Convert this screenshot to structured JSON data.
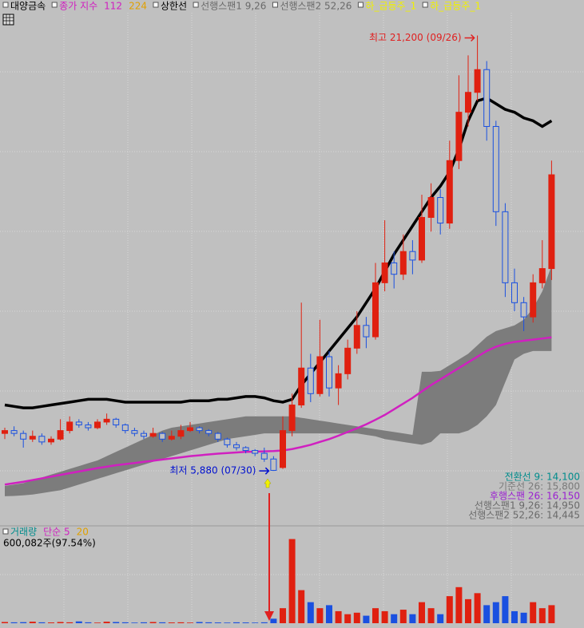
{
  "header": {
    "items": [
      {
        "text": "대양금속",
        "color": "#000000"
      },
      {
        "text": "종가 지수",
        "color": "#d020c0"
      },
      {
        "text": "112",
        "color": "#d020c0"
      },
      {
        "text": "224",
        "color": "#e0a000"
      },
      {
        "text": "상한선",
        "color": "#000000"
      },
      {
        "text": "선행스팬1 9,26",
        "color": "#6a6a6a"
      },
      {
        "text": "선행스팬2 52,26",
        "color": "#6a6a6a"
      },
      {
        "text": "하_급등주_1",
        "color": "#f0f000"
      },
      {
        "text": "하_급등주_1",
        "color": "#f0f000"
      }
    ]
  },
  "chart_data": {
    "type": "candlestick",
    "ylim": [
      4060,
      22000
    ],
    "up_color": "#e02010",
    "down_color": "#1a50e0",
    "open": [
      7200,
      7300,
      7200,
      7000,
      7100,
      6900,
      7000,
      7300,
      7600,
      7500,
      7400,
      7600,
      7700,
      7500,
      7300,
      7200,
      7100,
      7200,
      7000,
      7100,
      7300,
      7400,
      7300,
      7200,
      7000,
      6800,
      6700,
      6600,
      6500,
      6300,
      6000,
      7300,
      8200,
      9500,
      8600,
      9900,
      8800,
      9300,
      10200,
      11000,
      10600,
      12500,
      13200,
      12800,
      13600,
      13300,
      14800,
      15500,
      14600,
      16800,
      18500,
      19200,
      20000,
      18000,
      15000,
      12500,
      11800,
      11300,
      12500,
      13000
    ],
    "high": [
      7400,
      7450,
      7300,
      7300,
      7200,
      7100,
      7700,
      7800,
      7700,
      7600,
      7700,
      7900,
      7750,
      7550,
      7400,
      7300,
      7400,
      7250,
      7300,
      7500,
      7600,
      7450,
      7350,
      7250,
      7050,
      6900,
      6750,
      6650,
      6700,
      6400,
      7800,
      8600,
      11800,
      10000,
      11200,
      10100,
      9600,
      10500,
      11500,
      11300,
      13200,
      14700,
      13600,
      14200,
      14000,
      15600,
      16000,
      15800,
      17500,
      19800,
      20500,
      21200,
      20300,
      18200,
      15300,
      13000,
      12000,
      12800,
      14000,
      16800
    ],
    "low": [
      7000,
      7100,
      6700,
      6900,
      6800,
      6800,
      6950,
      7200,
      7400,
      7300,
      7350,
      7500,
      7400,
      7200,
      7100,
      7000,
      7050,
      6900,
      6950,
      7000,
      7250,
      7200,
      7100,
      6900,
      6700,
      6600,
      6500,
      6400,
      6200,
      5880,
      5950,
      7100,
      8100,
      8300,
      8500,
      8500,
      8200,
      9100,
      10000,
      10200,
      10500,
      12200,
      12300,
      12600,
      12800,
      13200,
      14300,
      14200,
      14400,
      16500,
      18000,
      18900,
      17500,
      14500,
      12000,
      11500,
      10800,
      11100,
      12300,
      12600
    ],
    "close": [
      7300,
      7200,
      7000,
      7100,
      6900,
      7000,
      7300,
      7600,
      7500,
      7400,
      7600,
      7700,
      7500,
      7300,
      7200,
      7100,
      7200,
      7000,
      7100,
      7300,
      7400,
      7300,
      7200,
      7000,
      6800,
      6700,
      6600,
      6500,
      6300,
      5900,
      7300,
      8200,
      9500,
      8600,
      9900,
      8800,
      9300,
      10200,
      11000,
      10600,
      12500,
      13200,
      12800,
      13600,
      13300,
      14800,
      15500,
      14600,
      16800,
      18500,
      19200,
      20000,
      18000,
      15000,
      12500,
      11800,
      11300,
      12500,
      13000,
      16300
    ],
    "upper_band": {
      "color": "#000000",
      "values": [
        8200,
        8150,
        8100,
        8100,
        8150,
        8200,
        8250,
        8300,
        8350,
        8400,
        8400,
        8400,
        8350,
        8300,
        8300,
        8300,
        8300,
        8300,
        8300,
        8300,
        8350,
        8350,
        8350,
        8400,
        8400,
        8450,
        8500,
        8500,
        8450,
        8350,
        8300,
        8400,
        8900,
        9300,
        9700,
        10100,
        10500,
        10900,
        11300,
        11800,
        12300,
        12900,
        13500,
        14000,
        14500,
        15000,
        15500,
        15900,
        16400,
        17200,
        18200,
        18900,
        19000,
        18800,
        18600,
        18500,
        18300,
        18200,
        18000,
        18200
      ]
    },
    "ma": {
      "color": "#d020c0",
      "values": [
        5400,
        5450,
        5500,
        5560,
        5620,
        5680,
        5740,
        5800,
        5860,
        5920,
        5980,
        6030,
        6080,
        6120,
        6160,
        6200,
        6240,
        6280,
        6320,
        6360,
        6400,
        6430,
        6460,
        6490,
        6510,
        6530,
        6550,
        6560,
        6570,
        6580,
        6600,
        6650,
        6720,
        6800,
        6900,
        7000,
        7120,
        7250,
        7380,
        7520,
        7680,
        7850,
        8050,
        8250,
        8450,
        8680,
        8900,
        9100,
        9300,
        9500,
        9700,
        9900,
        10100,
        10250,
        10350,
        10420,
        10460,
        10500,
        10540,
        10580
      ]
    },
    "cloud": {
      "color": "#7c7c7c",
      "span_a": [
        5350,
        5400,
        5450,
        5550,
        5650,
        5750,
        5850,
        5950,
        6050,
        6150,
        6250,
        6400,
        6550,
        6700,
        6850,
        7000,
        7150,
        7300,
        7400,
        7450,
        7500,
        7550,
        7600,
        7650,
        7700,
        7750,
        7800,
        7800,
        7800,
        7800,
        7800,
        7800,
        7750,
        7700,
        7650,
        7600,
        7550,
        7500,
        7450,
        7400,
        7350,
        7300,
        7250,
        7200,
        7150,
        9370,
        9370,
        9400,
        9600,
        9800,
        10000,
        10300,
        10600,
        10800,
        10900,
        11000,
        11200,
        11600,
        12200,
        13100
      ],
      "span_b": [
        4990,
        5000,
        5020,
        5050,
        5100,
        5150,
        5200,
        5300,
        5400,
        5500,
        5600,
        5700,
        5800,
        5900,
        6000,
        6100,
        6200,
        6300,
        6400,
        6500,
        6600,
        6700,
        6800,
        6900,
        7000,
        7050,
        7100,
        7150,
        7200,
        7200,
        7200,
        7200,
        7200,
        7200,
        7200,
        7200,
        7200,
        7200,
        7200,
        7150,
        7100,
        7000,
        6950,
        6900,
        6850,
        6800,
        6900,
        7200,
        7200,
        7200,
        7300,
        7500,
        7800,
        8200,
        9000,
        9800,
        10000,
        10100,
        10100,
        10100
      ]
    },
    "annotations": [
      {
        "text": "최고 21,200 (09/26)",
        "color": "#e02020"
      },
      {
        "text": "최저 5,880 (07/30)",
        "color": "#0010d0"
      }
    ],
    "indicators": [
      {
        "text": "전환선 9: 14,100",
        "color": "#008c8c"
      },
      {
        "text": "기준선 26: 15,800",
        "color": "#7a7a7a"
      },
      {
        "text": "후행스팬 26: 16,150",
        "color": "#9a20d0"
      },
      {
        "text": "선행스팬1 9,26: 14,950",
        "color": "#6a6a6a"
      },
      {
        "text": "선행스팬2 52,26: 14,445",
        "color": "#6a6a6a"
      }
    ]
  },
  "volume": {
    "type": "bar",
    "title": "거래량",
    "title_color": "#008c8c",
    "ma_labels": [
      {
        "text": "단순 5",
        "color": "#d020c0"
      },
      {
        "text": "20",
        "color": "#e0a000"
      }
    ],
    "info": "600,082주(97.54%)",
    "ylim": [
      0,
      3000000
    ],
    "values": [
      40000,
      30000,
      35000,
      50000,
      30000,
      25000,
      40000,
      30000,
      60000,
      30000,
      20000,
      50000,
      40000,
      30000,
      20000,
      30000,
      40000,
      30000,
      25000,
      30000,
      20000,
      40000,
      30000,
      25000,
      20000,
      30000,
      25000,
      20000,
      30000,
      150000,
      500000,
      2800000,
      1100000,
      700000,
      500000,
      600000,
      400000,
      300000,
      350000,
      250000,
      500000,
      400000,
      300000,
      450000,
      300000,
      700000,
      500000,
      300000,
      900000,
      1200000,
      800000,
      1000000,
      600000,
      700000,
      900000,
      400000,
      350000,
      700000,
      500000,
      600082
    ]
  }
}
